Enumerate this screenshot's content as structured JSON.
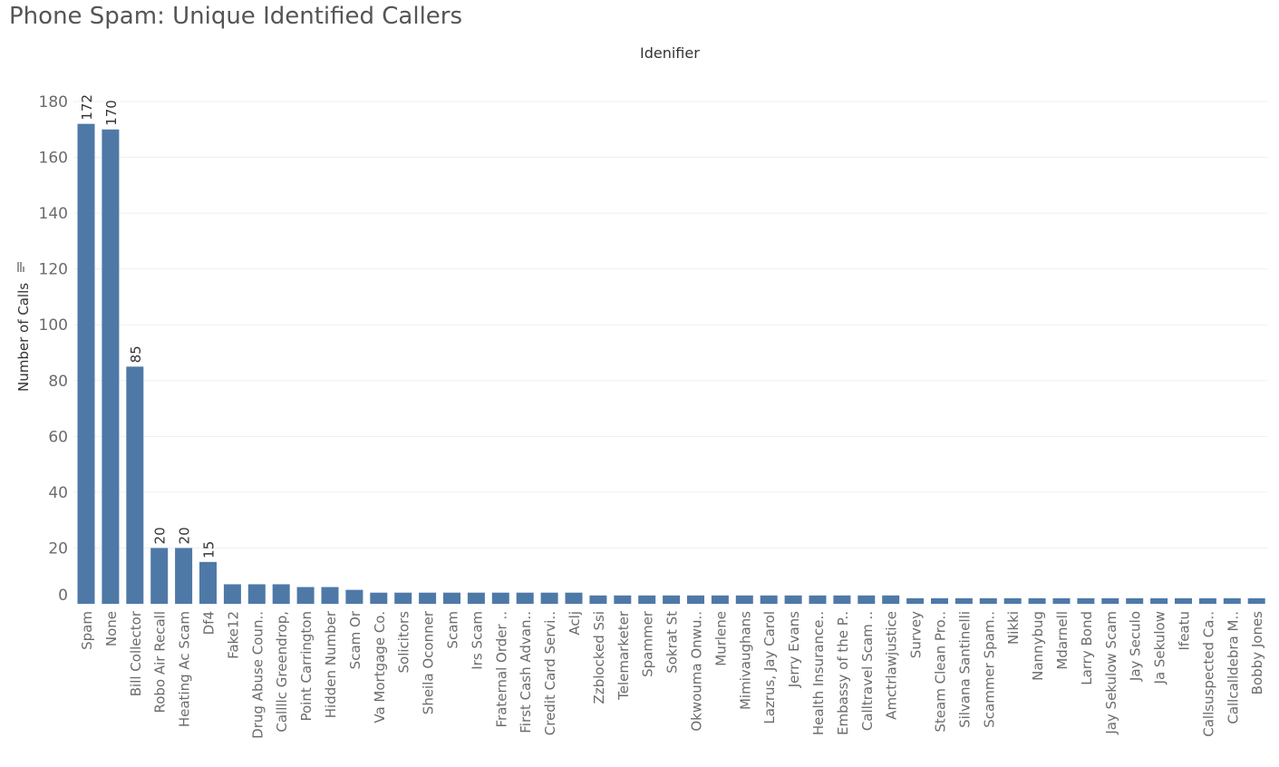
{
  "page": {
    "title": "Phone Spam: Unique Identified Callers",
    "header_label": "Idenifier"
  },
  "colors": {
    "bar": "#4e79a7",
    "grid": "#efefef",
    "text": "#6b6b6b"
  },
  "chart_data": {
    "type": "bar",
    "title": "Phone Spam: Unique Identified Callers",
    "xlabel": "Idenifier",
    "ylabel": "Number of Calls",
    "sort_icon": "sort-descending-icon",
    "ylim": [
      0,
      180
    ],
    "yticks": [
      0,
      20,
      40,
      60,
      80,
      100,
      120,
      140,
      160,
      180
    ],
    "grid": true,
    "categories": [
      "Spam",
      "None",
      "Bill Collector",
      "Robo Air Recall",
      "Heating Ac Scam",
      "Df4",
      "Fake12",
      "Drug Abuse Coun..",
      "Callllc Greendrop,",
      "Point Carrington",
      "Hidden Number",
      "Scam Or",
      "Va Mortgage Co.",
      "Solicitors",
      "Sheila Oconner",
      "Scam",
      "Irs Scam",
      "Fraternal Order ..",
      "First Cash Advan..",
      "Credit Card Servi..",
      "Aclj",
      "Zzblocked Ssi",
      "Telemarketer",
      "Spammer",
      "Sokrat St",
      "Okwouma Onwu..",
      "Murlene",
      "Mimivaughans",
      "Lazrus, Jay Carol",
      "Jerry Evans",
      "Health Insurance..",
      "Embassy of the P..",
      "Calltravel Scam ..",
      "Amctrlawjustice",
      "Survey",
      "Steam Clean Pro..",
      "Silvana Santinelli",
      "Scammer Spam..",
      "Nikki",
      "Nannybug",
      "Mdarnell",
      "Larry Bond",
      "Jay Sekulow Scam",
      "Jay Seculo",
      "Ja Sekulow",
      "Ifeatu",
      "Callsuspected Ca..",
      "Callcalldebra M..",
      "Bobby Jones"
    ],
    "values": [
      172,
      170,
      85,
      20,
      20,
      15,
      7,
      7,
      7,
      6,
      6,
      5,
      4,
      4,
      4,
      4,
      4,
      4,
      4,
      4,
      4,
      3,
      3,
      3,
      3,
      3,
      3,
      3,
      3,
      3,
      3,
      3,
      3,
      3,
      2,
      2,
      2,
      2,
      2,
      2,
      2,
      2,
      2,
      2,
      2,
      2,
      2,
      2,
      2
    ],
    "data_labels": {
      "Spam": "172",
      "None": "170",
      "Bill Collector": "85",
      "Robo Air Recall": "20",
      "Heating Ac Scam": "20",
      "Df4": "15"
    }
  }
}
